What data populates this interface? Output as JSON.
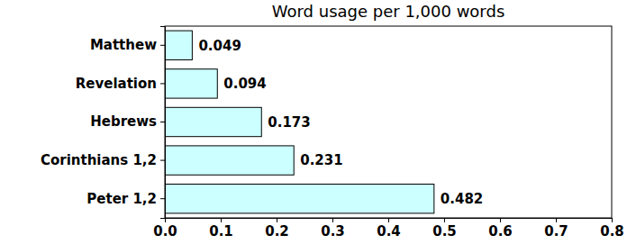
{
  "chart_data": {
    "type": "bar",
    "title": "Word usage per 1,000 words",
    "orientation": "horizontal",
    "categories": [
      "Matthew",
      "Revelation",
      "Hebrews",
      "Corinthians 1,2",
      "Peter 1,2"
    ],
    "values": [
      0.049,
      0.094,
      0.173,
      0.231,
      0.482
    ],
    "color": "#ccffff",
    "xlim": [
      0,
      0.8
    ],
    "xticks": [
      {
        "value": 0,
        "label": "0.0"
      },
      0.1,
      0.2,
      0.3,
      0.4,
      0.5,
      0.6,
      0.7,
      0.8
    ],
    "data_labels": true,
    "grid": false
  }
}
